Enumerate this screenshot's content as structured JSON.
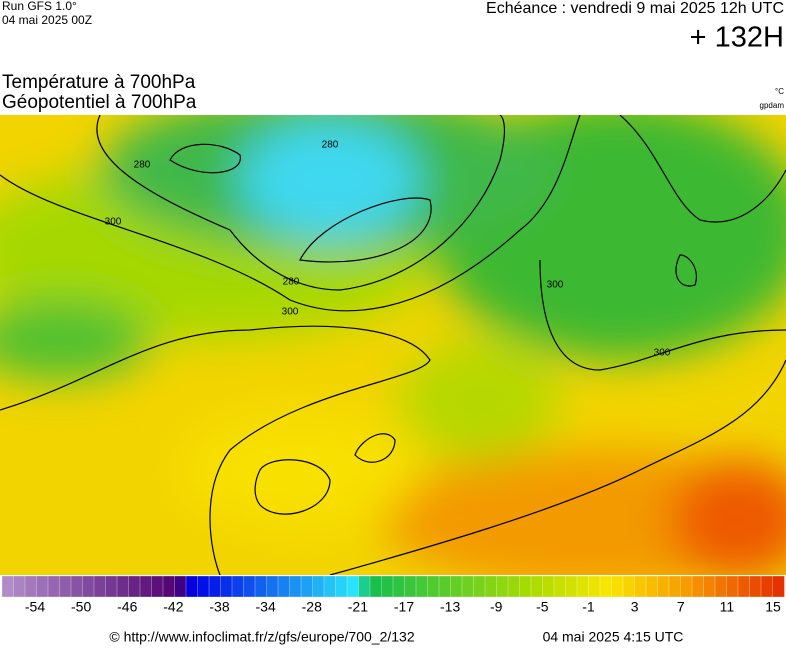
{
  "header": {
    "run": "Run GFS 1.0°",
    "run_date": "04 mai 2025 00Z",
    "echeance": "Echéance : vendredi 9 mai 2025 12h UTC",
    "lead": "+ 132H",
    "title_1": "Température à 700hPa",
    "title_2": "Géopotentiel à 700hPa",
    "unit_1": "°C",
    "unit_2": "gpdam"
  },
  "contour_labels": [
    "280",
    "280",
    "280",
    "300",
    "300",
    "300",
    "300"
  ],
  "colorbar": {
    "labels": [
      "-54",
      "-50",
      "-46",
      "-42",
      "-38",
      "-34",
      "-28",
      "-21",
      "-17",
      "-13",
      "-9",
      "-5",
      "-1",
      "3",
      "7",
      "11",
      "15"
    ]
  },
  "footer": {
    "url": "© http://www.infoclimat.fr/z/gfs/europe/700_2/132",
    "time": "04 mai 2025  4:15 UTC"
  }
}
